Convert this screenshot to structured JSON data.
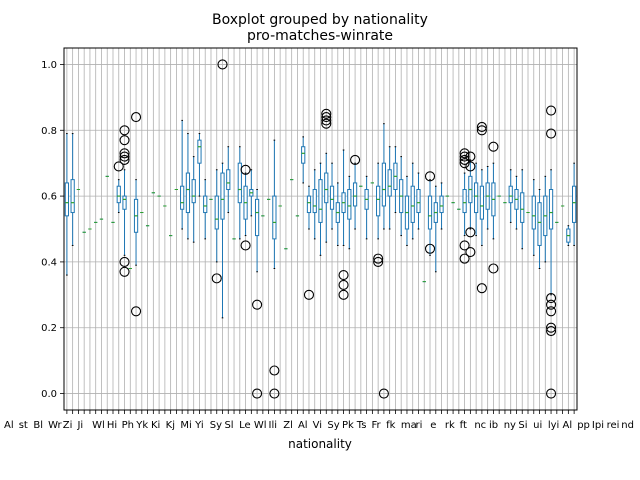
{
  "chart_data": {
    "type": "boxplot",
    "title": "Boxplot grouped by nationality",
    "subtitle": "pro-matches-winrate",
    "xlabel": "nationality",
    "ylabel": "",
    "ylim": [
      -0.05,
      1.05
    ],
    "yticks": [
      "0.0",
      "0.2",
      "0.4",
      "0.6",
      "0.8",
      "1.0"
    ],
    "grid": true,
    "x_tick_label_fragments": [
      "Al",
      "st",
      "Bl",
      "Wr",
      "Zi",
      "Ji",
      "Wl",
      "Hi",
      "Ph",
      "Yk",
      "Ki",
      "Kj",
      "Mi",
      "Yi",
      "Sy",
      "Sl",
      "Le",
      "Wl",
      "Ili",
      "Zl",
      "Al",
      "Vi",
      "Sy",
      "Pk",
      "Ts",
      "Fr",
      "fk",
      "ma",
      "ri",
      "e",
      "rk",
      "ft",
      "nc",
      "ib",
      "ny",
      "Si",
      "ui",
      "lyi",
      "Al",
      "pp",
      "Ipi",
      "rei",
      "nd"
    ],
    "groups": [
      {
        "kind": "box",
        "q1": 0.54,
        "med": 0.58,
        "q3": 0.64,
        "lo": 0.36,
        "hi": 0.79
      },
      {
        "kind": "box",
        "q1": 0.55,
        "med": 0.58,
        "q3": 0.65,
        "lo": 0.45,
        "hi": 0.79
      },
      {
        "kind": "flat",
        "v": 0.62
      },
      {
        "kind": "flat",
        "v": 0.49
      },
      {
        "kind": "flat",
        "v": 0.5
      },
      {
        "kind": "flat",
        "v": 0.52
      },
      {
        "kind": "flat",
        "v": 0.53
      },
      {
        "kind": "flat",
        "v": 0.66
      },
      {
        "kind": "flat",
        "v": 0.52
      },
      {
        "kind": "box",
        "q1": 0.58,
        "med": 0.6,
        "q3": 0.63,
        "lo": 0.55,
        "hi": 0.65,
        "out": [
          0.69
        ]
      },
      {
        "kind": "box",
        "q1": 0.56,
        "med": 0.59,
        "q3": 0.6,
        "lo": 0.42,
        "hi": 0.68,
        "out": [
          0.4,
          0.37,
          0.71,
          0.72,
          0.73,
          0.77,
          0.8
        ]
      },
      {
        "kind": "flat",
        "v": 0.38
      },
      {
        "kind": "box",
        "q1": 0.49,
        "med": 0.54,
        "q3": 0.59,
        "lo": 0.39,
        "hi": 0.65,
        "out": [
          0.25,
          0.84
        ]
      },
      {
        "kind": "flat",
        "v": 0.55
      },
      {
        "kind": "flat",
        "v": 0.51
      },
      {
        "kind": "flat",
        "v": 0.61
      },
      {
        "kind": "flat",
        "v": 0.6
      },
      {
        "kind": "flat",
        "v": 0.57
      },
      {
        "kind": "flat",
        "v": 0.48
      },
      {
        "kind": "flat",
        "v": 0.62
      },
      {
        "kind": "box",
        "q1": 0.56,
        "med": 0.58,
        "q3": 0.63,
        "lo": 0.5,
        "hi": 0.83
      },
      {
        "kind": "box",
        "q1": 0.55,
        "med": 0.62,
        "q3": 0.67,
        "lo": 0.47,
        "hi": 0.79
      },
      {
        "kind": "box",
        "q1": 0.58,
        "med": 0.6,
        "q3": 0.65,
        "lo": 0.46,
        "hi": 0.72
      },
      {
        "kind": "box",
        "q1": 0.7,
        "med": 0.75,
        "q3": 0.77,
        "lo": 0.6,
        "hi": 0.79
      },
      {
        "kind": "box",
        "q1": 0.55,
        "med": 0.57,
        "q3": 0.6,
        "lo": 0.47,
        "hi": 0.65
      },
      {
        "kind": "flat",
        "v": 0.59
      },
      {
        "kind": "box",
        "q1": 0.5,
        "med": 0.53,
        "q3": 0.6,
        "lo": 0.4,
        "hi": 0.68,
        "out": [
          0.35
        ]
      },
      {
        "kind": "box",
        "q1": 0.53,
        "med": 0.59,
        "q3": 0.67,
        "lo": 0.23,
        "hi": 0.7,
        "out": [
          1.0
        ]
      },
      {
        "kind": "box",
        "q1": 0.62,
        "med": 0.64,
        "q3": 0.68,
        "lo": 0.55,
        "hi": 0.75
      },
      {
        "kind": "flat",
        "v": 0.47
      },
      {
        "kind": "box",
        "q1": 0.58,
        "med": 0.62,
        "q3": 0.7,
        "lo": 0.47,
        "hi": 0.75
      },
      {
        "kind": "box",
        "q1": 0.53,
        "med": 0.58,
        "q3": 0.63,
        "lo": 0.48,
        "hi": 0.67,
        "out": [
          0.45,
          0.68
        ]
      },
      {
        "kind": "box",
        "q1": 0.6,
        "med": 0.61,
        "q3": 0.62,
        "lo": 0.54,
        "hi": 0.68
      },
      {
        "kind": "box",
        "q1": 0.48,
        "med": 0.55,
        "q3": 0.59,
        "lo": 0.37,
        "hi": 0.62,
        "out": [
          0.27,
          0.0
        ]
      },
      {
        "kind": "flat",
        "v": 0.54
      },
      {
        "kind": "flat",
        "v": 0.59
      },
      {
        "kind": "box",
        "q1": 0.47,
        "med": 0.52,
        "q3": 0.6,
        "lo": 0.38,
        "hi": 0.77,
        "out": [
          0.07,
          0.0
        ]
      },
      {
        "kind": "flat",
        "v": 0.57
      },
      {
        "kind": "flat",
        "v": 0.44
      },
      {
        "kind": "flat",
        "v": 0.65
      },
      {
        "kind": "flat",
        "v": 0.54
      },
      {
        "kind": "box",
        "q1": 0.7,
        "med": 0.73,
        "q3": 0.75,
        "lo": 0.64,
        "hi": 0.78
      },
      {
        "kind": "box",
        "q1": 0.55,
        "med": 0.58,
        "q3": 0.6,
        "lo": 0.5,
        "hi": 0.63,
        "out": [
          0.3
        ]
      },
      {
        "kind": "box",
        "q1": 0.55,
        "med": 0.57,
        "q3": 0.62,
        "lo": 0.47,
        "hi": 0.68
      },
      {
        "kind": "box",
        "q1": 0.52,
        "med": 0.56,
        "q3": 0.65,
        "lo": 0.42,
        "hi": 0.7
      },
      {
        "kind": "box",
        "q1": 0.58,
        "med": 0.62,
        "q3": 0.67,
        "lo": 0.46,
        "hi": 0.73,
        "out": [
          0.82,
          0.83,
          0.84,
          0.85
        ]
      },
      {
        "kind": "box",
        "q1": 0.56,
        "med": 0.59,
        "q3": 0.63,
        "lo": 0.5,
        "hi": 0.7
      },
      {
        "kind": "box",
        "q1": 0.52,
        "med": 0.55,
        "q3": 0.58,
        "lo": 0.45,
        "hi": 0.64
      },
      {
        "kind": "box",
        "q1": 0.55,
        "med": 0.58,
        "q3": 0.61,
        "lo": 0.45,
        "hi": 0.74,
        "out": [
          0.3,
          0.33,
          0.36
        ]
      },
      {
        "kind": "box",
        "q1": 0.53,
        "med": 0.57,
        "q3": 0.62,
        "lo": 0.44,
        "hi": 0.66
      },
      {
        "kind": "box",
        "q1": 0.57,
        "med": 0.6,
        "q3": 0.64,
        "lo": 0.5,
        "hi": 0.7,
        "out": [
          0.71
        ]
      },
      {
        "kind": "flat",
        "v": 0.63
      },
      {
        "kind": "box",
        "q1": 0.56,
        "med": 0.59,
        "q3": 0.62,
        "lo": 0.47,
        "hi": 0.66
      },
      {
        "kind": "flat",
        "v": 0.64
      },
      {
        "kind": "box",
        "q1": 0.54,
        "med": 0.59,
        "q3": 0.63,
        "lo": 0.47,
        "hi": 0.7,
        "out": [
          0.41,
          0.4
        ]
      },
      {
        "kind": "box",
        "q1": 0.57,
        "med": 0.62,
        "q3": 0.7,
        "lo": 0.5,
        "hi": 0.82,
        "out": [
          0.0
        ]
      },
      {
        "kind": "box",
        "q1": 0.6,
        "med": 0.63,
        "q3": 0.68,
        "lo": 0.5,
        "hi": 0.75
      },
      {
        "kind": "box",
        "q1": 0.62,
        "med": 0.66,
        "q3": 0.7,
        "lo": 0.55,
        "hi": 0.75
      },
      {
        "kind": "box",
        "q1": 0.55,
        "med": 0.6,
        "q3": 0.65,
        "lo": 0.48,
        "hi": 0.72
      },
      {
        "kind": "box",
        "q1": 0.5,
        "med": 0.55,
        "q3": 0.6,
        "lo": 0.45,
        "hi": 0.66
      },
      {
        "kind": "box",
        "q1": 0.52,
        "med": 0.57,
        "q3": 0.63,
        "lo": 0.47,
        "hi": 0.7
      },
      {
        "kind": "box",
        "q1": 0.55,
        "med": 0.58,
        "q3": 0.62,
        "lo": 0.5,
        "hi": 0.67
      },
      {
        "kind": "flat",
        "v": 0.34
      },
      {
        "kind": "box",
        "q1": 0.5,
        "med": 0.54,
        "q3": 0.6,
        "lo": 0.42,
        "hi": 0.65,
        "out": [
          0.44,
          0.66
        ]
      },
      {
        "kind": "box",
        "q1": 0.52,
        "med": 0.55,
        "q3": 0.58,
        "lo": 0.37,
        "hi": 0.63
      },
      {
        "kind": "box",
        "q1": 0.55,
        "med": 0.57,
        "q3": 0.6,
        "lo": 0.5,
        "hi": 0.64
      },
      {
        "kind": "flat",
        "v": 0.6
      },
      {
        "kind": "flat",
        "v": 0.58
      },
      {
        "kind": "flat",
        "v": 0.56
      },
      {
        "kind": "box",
        "q1": 0.55,
        "med": 0.58,
        "q3": 0.62,
        "lo": 0.48,
        "hi": 0.67,
        "out": [
          0.41,
          0.45,
          0.7,
          0.71,
          0.72,
          0.73
        ]
      },
      {
        "kind": "box",
        "q1": 0.58,
        "med": 0.62,
        "q3": 0.66,
        "lo": 0.5,
        "hi": 0.71,
        "out": [
          0.49,
          0.43,
          0.69,
          0.72
        ]
      },
      {
        "kind": "box",
        "q1": 0.55,
        "med": 0.6,
        "q3": 0.64,
        "lo": 0.48,
        "hi": 0.7
      },
      {
        "kind": "box",
        "q1": 0.53,
        "med": 0.57,
        "q3": 0.63,
        "lo": 0.45,
        "hi": 0.68,
        "out": [
          0.32,
          0.81,
          0.8
        ]
      },
      {
        "kind": "box",
        "q1": 0.56,
        "med": 0.6,
        "q3": 0.64,
        "lo": 0.5,
        "hi": 0.69
      },
      {
        "kind": "box",
        "q1": 0.54,
        "med": 0.59,
        "q3": 0.64,
        "lo": 0.47,
        "hi": 0.7,
        "out": [
          0.38,
          0.75
        ]
      },
      {
        "kind": "flat",
        "v": 0.6
      },
      {
        "kind": "flat",
        "v": 0.58
      },
      {
        "kind": "box",
        "q1": 0.58,
        "med": 0.6,
        "q3": 0.63,
        "lo": 0.52,
        "hi": 0.68
      },
      {
        "kind": "box",
        "q1": 0.56,
        "med": 0.59,
        "q3": 0.62,
        "lo": 0.5,
        "hi": 0.66
      },
      {
        "kind": "box",
        "q1": 0.52,
        "med": 0.56,
        "q3": 0.61,
        "lo": 0.44,
        "hi": 0.68
      },
      {
        "kind": "flat",
        "v": 0.55
      },
      {
        "kind": "box",
        "q1": 0.5,
        "med": 0.54,
        "q3": 0.6,
        "lo": 0.42,
        "hi": 0.65
      },
      {
        "kind": "box",
        "q1": 0.45,
        "med": 0.52,
        "q3": 0.58,
        "lo": 0.38,
        "hi": 0.62
      },
      {
        "kind": "box",
        "q1": 0.48,
        "med": 0.54,
        "q3": 0.6,
        "lo": 0.4,
        "hi": 0.66
      },
      {
        "kind": "box",
        "q1": 0.5,
        "med": 0.55,
        "q3": 0.62,
        "lo": 0.3,
        "hi": 0.68,
        "out": [
          0.0,
          0.19,
          0.2,
          0.25,
          0.27,
          0.29,
          0.79,
          0.86
        ]
      },
      {
        "kind": "flat",
        "v": 0.52
      },
      {
        "kind": "flat",
        "v": 0.57
      },
      {
        "kind": "box",
        "q1": 0.46,
        "med": 0.48,
        "q3": 0.5,
        "lo": 0.45,
        "hi": 0.51
      },
      {
        "kind": "box",
        "q1": 0.52,
        "med": 0.58,
        "q3": 0.63,
        "lo": 0.45,
        "hi": 0.7
      }
    ]
  }
}
